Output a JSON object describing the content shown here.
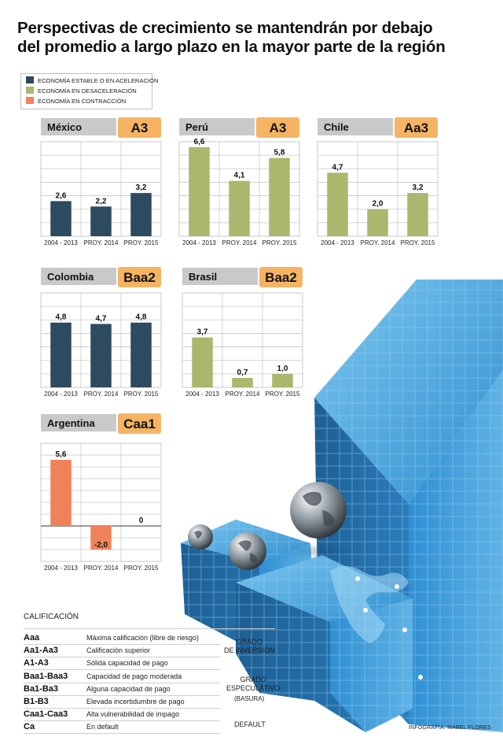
{
  "title_lines": [
    "Perspectivas de crecimiento se mantendrán por debajo",
    "del promedio a largo plazo en la mayor parte de la región"
  ],
  "legend": [
    {
      "label": "ECONOMÍA ESTABLE O EN ACELERACIÓN",
      "color": "#2d4a5e"
    },
    {
      "label": "ECONOMÍA EN DESACELERACIÓN",
      "color": "#a9b86d"
    },
    {
      "label": "ECONOMÍA EN CONTRACCIÓN",
      "color": "#ef8259"
    }
  ],
  "colors": {
    "estable": "#2d4a5e",
    "desaceleracion": "#a9b86d",
    "contraccion": "#ef8259",
    "rating_badge": "#f4b463",
    "country_tab": "#c9c9c9",
    "grid": "#c8c8c8",
    "cube": "#2f8fcf"
  },
  "chart_data": [
    {
      "type": "bar",
      "country": "México",
      "rating": "A3",
      "categories": [
        "2004 - 2013",
        "PROY. 2014",
        "PROY. 2015"
      ],
      "values": [
        2.6,
        2.2,
        3.2
      ],
      "value_labels": [
        "2,6",
        "2,2",
        "3,2"
      ],
      "status": "estable"
    },
    {
      "type": "bar",
      "country": "Perú",
      "rating": "A3",
      "categories": [
        "2004 - 2013",
        "PROY. 2014",
        "PROY. 2015"
      ],
      "values": [
        6.6,
        4.1,
        5.8
      ],
      "value_labels": [
        "6,6",
        "4,1",
        "5,8"
      ],
      "status": "desaceleracion"
    },
    {
      "type": "bar",
      "country": "Chile",
      "rating": "Aa3",
      "categories": [
        "2004 - 2013",
        "PROY. 2014",
        "PROY. 2015"
      ],
      "values": [
        4.7,
        2.0,
        3.2
      ],
      "value_labels": [
        "4,7",
        "2,0",
        "3,2"
      ],
      "status": "desaceleracion"
    },
    {
      "type": "bar",
      "country": "Colombia",
      "rating": "Baa2",
      "categories": [
        "2004 - 2013",
        "PROY. 2014",
        "PROY. 2015"
      ],
      "values": [
        4.8,
        4.7,
        4.8
      ],
      "value_labels": [
        "4,8",
        "4,7",
        "4,8"
      ],
      "status": "estable"
    },
    {
      "type": "bar",
      "country": "Brasil",
      "rating": "Baa2",
      "categories": [
        "2004 - 2013",
        "PROY. 2014",
        "PROY. 2015"
      ],
      "values": [
        3.7,
        0.7,
        1.0
      ],
      "value_labels": [
        "3,7",
        "0,7",
        "1,0"
      ],
      "status": "desaceleracion"
    },
    {
      "type": "bar",
      "country": "Argentina",
      "rating": "Caa1",
      "categories": [
        "2004 - 2013",
        "PROY. 2014",
        "PROY. 2015"
      ],
      "values": [
        5.6,
        -2.0,
        0
      ],
      "value_labels": [
        "5,6",
        "-2,0",
        "0"
      ],
      "status": "contraccion"
    }
  ],
  "ratings_table": {
    "title": "CALIFICACIÓN",
    "rows": [
      {
        "code": "Aaa",
        "desc": "Máxima calificación (libre de riesgo)"
      },
      {
        "code": "Aa1-Aa3",
        "desc": "Calificación superior"
      },
      {
        "code": "A1-A3",
        "desc": "Sólida capacidad de pago"
      },
      {
        "code": "Baa1-Baa3",
        "desc": "Capacidad de pago moderada"
      },
      {
        "code": "Ba1-Ba3",
        "desc": "Alguna capacidad de pago"
      },
      {
        "code": "B1-B3",
        "desc": "Elevada incertidumbre de pago"
      },
      {
        "code": "Caa1-Caa3",
        "desc": "Alta vulnerabilidad de impago"
      },
      {
        "code": "Ca",
        "desc": "En default"
      }
    ],
    "groups": {
      "inversion": [
        "GRADO",
        "DE INVERSIÓN"
      ],
      "especulativo": [
        "GRADO",
        "ESPECULATIVO"
      ],
      "basura": "(BASURA)",
      "default": "DEFAULT"
    }
  },
  "credit": "INFOGRAFÍA: MABEL FLORES"
}
